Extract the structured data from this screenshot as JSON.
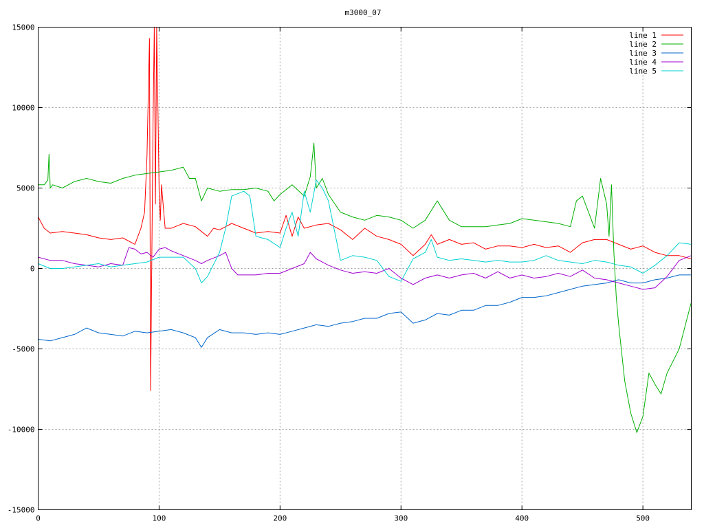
{
  "chart_data": {
    "type": "line",
    "title": "m3000_07",
    "xlabel": "",
    "ylabel": "",
    "xlim": [
      0,
      540
    ],
    "ylim": [
      -15000,
      15000
    ],
    "x_ticks": [
      0,
      100,
      200,
      300,
      400,
      500
    ],
    "y_ticks": [
      -15000,
      -10000,
      -5000,
      0,
      5000,
      10000,
      15000
    ],
    "grid": true,
    "legend_position": "top-right",
    "series": [
      {
        "name": "line 1",
        "color": "#ff0000",
        "x": [
          0,
          5,
          10,
          20,
          30,
          40,
          50,
          60,
          70,
          80,
          85,
          88,
          90,
          92,
          93,
          94,
          95,
          96,
          97,
          98,
          99,
          100,
          101,
          102,
          105,
          110,
          120,
          130,
          140,
          145,
          150,
          160,
          170,
          180,
          190,
          200,
          205,
          210,
          215,
          220,
          230,
          240,
          250,
          260,
          270,
          280,
          290,
          300,
          310,
          320,
          325,
          330,
          340,
          350,
          360,
          370,
          380,
          390,
          400,
          410,
          420,
          430,
          440,
          450,
          460,
          470,
          480,
          490,
          500,
          510,
          520,
          530,
          540
        ],
        "y": [
          3200,
          2500,
          2200,
          2300,
          2200,
          2100,
          1900,
          1800,
          1900,
          1500,
          2500,
          3500,
          7000,
          14300,
          -7600,
          1000,
          9000,
          15000,
          4000,
          15000,
          10000,
          5000,
          3000,
          5200,
          2500,
          2500,
          2800,
          2600,
          2000,
          2500,
          2400,
          2800,
          2500,
          2200,
          2300,
          2200,
          3300,
          2000,
          3200,
          2500,
          2700,
          2800,
          2400,
          1800,
          2500,
          2000,
          1800,
          1500,
          800,
          1500,
          2100,
          1500,
          1800,
          1500,
          1600,
          1200,
          1400,
          1400,
          1300,
          1500,
          1300,
          1400,
          1000,
          1600,
          1800,
          1800,
          1500,
          1200,
          1400,
          1000,
          800,
          800,
          600
        ]
      },
      {
        "name": "line 2",
        "color": "#00b000",
        "x": [
          0,
          5,
          8,
          9,
          10,
          12,
          20,
          30,
          40,
          50,
          60,
          70,
          80,
          90,
          100,
          110,
          120,
          125,
          130,
          135,
          140,
          150,
          160,
          170,
          180,
          190,
          195,
          200,
          210,
          220,
          225,
          228,
          230,
          235,
          240,
          250,
          260,
          270,
          280,
          290,
          300,
          310,
          320,
          330,
          340,
          350,
          360,
          370,
          380,
          390,
          400,
          410,
          420,
          430,
          440,
          445,
          450,
          455,
          460,
          465,
          470,
          472,
          474,
          476,
          478,
          480,
          485,
          490,
          495,
          500,
          505,
          510,
          515,
          520,
          530,
          540
        ],
        "y": [
          5200,
          5200,
          5500,
          7100,
          5000,
          5200,
          5000,
          5400,
          5600,
          5400,
          5300,
          5600,
          5800,
          5900,
          6000,
          6100,
          6300,
          5600,
          5600,
          4200,
          5000,
          4800,
          4900,
          4900,
          5000,
          4800,
          4200,
          4600,
          5200,
          4500,
          5700,
          7800,
          5000,
          5600,
          4600,
          3500,
          3200,
          3000,
          3300,
          3200,
          3000,
          2500,
          3000,
          4200,
          3000,
          2600,
          2600,
          2600,
          2700,
          2800,
          3100,
          3000,
          2900,
          2800,
          2600,
          4200,
          4500,
          3500,
          2500,
          5600,
          4000,
          2000,
          5200,
          1000,
          -1800,
          -3500,
          -7000,
          -9000,
          -10200,
          -9200,
          -6500,
          -7200,
          -7800,
          -6500,
          -5000,
          -2100
        ]
      },
      {
        "name": "line 3",
        "color": "#0066cc",
        "x": [
          0,
          10,
          20,
          30,
          40,
          50,
          60,
          70,
          80,
          90,
          100,
          110,
          120,
          130,
          135,
          140,
          150,
          160,
          170,
          180,
          190,
          200,
          210,
          220,
          230,
          240,
          250,
          260,
          270,
          280,
          290,
          300,
          310,
          320,
          330,
          340,
          350,
          360,
          370,
          380,
          390,
          400,
          410,
          420,
          430,
          440,
          450,
          460,
          470,
          480,
          490,
          500,
          510,
          520,
          530,
          540
        ],
        "y": [
          -4400,
          -4500,
          -4300,
          -4100,
          -3700,
          -4000,
          -4100,
          -4200,
          -3900,
          -4000,
          -3900,
          -3800,
          -4000,
          -4300,
          -4900,
          -4300,
          -3800,
          -4000,
          -4000,
          -4100,
          -4000,
          -4100,
          -3900,
          -3700,
          -3500,
          -3600,
          -3400,
          -3300,
          -3100,
          -3100,
          -2800,
          -2700,
          -3400,
          -3200,
          -2800,
          -2900,
          -2600,
          -2600,
          -2300,
          -2300,
          -2100,
          -1800,
          -1800,
          -1700,
          -1500,
          -1300,
          -1100,
          -1000,
          -900,
          -700,
          -900,
          -900,
          -700,
          -600,
          -400,
          -400
        ]
      },
      {
        "name": "line 4",
        "color": "#a000d0",
        "x": [
          0,
          10,
          20,
          30,
          40,
          50,
          60,
          70,
          75,
          80,
          85,
          90,
          95,
          100,
          105,
          110,
          120,
          130,
          135,
          140,
          150,
          155,
          160,
          165,
          170,
          180,
          190,
          200,
          210,
          220,
          225,
          230,
          240,
          250,
          260,
          270,
          280,
          290,
          300,
          310,
          320,
          330,
          340,
          350,
          360,
          370,
          380,
          390,
          400,
          410,
          420,
          430,
          440,
          450,
          460,
          470,
          480,
          490,
          500,
          510,
          520,
          530,
          540
        ],
        "y": [
          700,
          500,
          500,
          300,
          200,
          100,
          300,
          200,
          1300,
          1200,
          900,
          1000,
          700,
          1200,
          1300,
          1100,
          800,
          500,
          300,
          500,
          800,
          1000,
          0,
          -400,
          -400,
          -400,
          -300,
          -300,
          0,
          300,
          1000,
          600,
          200,
          -100,
          -300,
          -200,
          -300,
          0,
          -600,
          -1000,
          -600,
          -400,
          -600,
          -400,
          -300,
          -600,
          -200,
          -600,
          -400,
          -600,
          -500,
          -300,
          -500,
          -100,
          -600,
          -700,
          -900,
          -1100,
          -1300,
          -1200,
          -500,
          500,
          800
        ]
      },
      {
        "name": "line 5",
        "color": "#00d0d0",
        "x": [
          0,
          10,
          20,
          30,
          40,
          50,
          60,
          70,
          80,
          90,
          100,
          110,
          120,
          130,
          135,
          140,
          150,
          155,
          160,
          170,
          175,
          180,
          190,
          200,
          205,
          210,
          215,
          220,
          225,
          230,
          235,
          240,
          250,
          260,
          270,
          280,
          290,
          300,
          310,
          320,
          325,
          330,
          340,
          350,
          360,
          370,
          380,
          390,
          400,
          410,
          420,
          430,
          440,
          450,
          460,
          470,
          480,
          490,
          500,
          510,
          520,
          530,
          540
        ],
        "y": [
          300,
          0,
          0,
          100,
          200,
          300,
          100,
          200,
          300,
          400,
          700,
          700,
          700,
          0,
          -900,
          -500,
          1000,
          2500,
          4500,
          4800,
          4500,
          2000,
          1800,
          1300,
          2500,
          3500,
          2000,
          4800,
          3500,
          5500,
          5000,
          4200,
          500,
          800,
          700,
          500,
          -500,
          -800,
          600,
          1000,
          1800,
          700,
          500,
          600,
          500,
          400,
          500,
          400,
          400,
          500,
          800,
          500,
          400,
          300,
          500,
          400,
          200,
          100,
          -300,
          200,
          800,
          1600,
          1500
        ]
      }
    ]
  }
}
